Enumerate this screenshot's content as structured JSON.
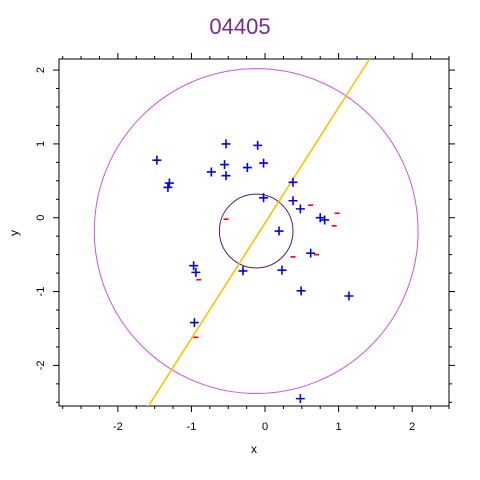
{
  "chart_data": {
    "type": "scatter",
    "title": "04405",
    "xlabel": "x",
    "ylabel": "y",
    "xlim": [
      -2.8,
      2.5
    ],
    "ylim": [
      -2.55,
      2.15
    ],
    "x_ticks": [
      "-2",
      "-1",
      "0",
      "1",
      "2"
    ],
    "x_tick_values": [
      -2,
      -1,
      0,
      1,
      2
    ],
    "y_ticks": [
      "-2",
      "-1",
      "0",
      "1",
      "2"
    ],
    "y_tick_values": [
      -2,
      -1,
      0,
      1,
      2
    ],
    "grid": false,
    "plus_points": [
      {
        "x": -1.47,
        "y": 0.78
      },
      {
        "x": -1.32,
        "y": 0.41
      },
      {
        "x": -1.3,
        "y": 0.47
      },
      {
        "x": -0.73,
        "y": 0.62
      },
      {
        "x": -0.53,
        "y": 1.0
      },
      {
        "x": -0.55,
        "y": 0.72
      },
      {
        "x": -0.53,
        "y": 0.57
      },
      {
        "x": -0.24,
        "y": 0.68
      },
      {
        "x": -0.1,
        "y": 0.98
      },
      {
        "x": -0.02,
        "y": 0.74
      },
      {
        "x": -0.02,
        "y": 0.27
      },
      {
        "x": 0.38,
        "y": 0.48
      },
      {
        "x": 0.38,
        "y": 0.23
      },
      {
        "x": 0.48,
        "y": 0.12
      },
      {
        "x": 0.75,
        "y": 0.0
      },
      {
        "x": 0.81,
        "y": -0.03
      },
      {
        "x": 0.19,
        "y": -0.18
      },
      {
        "x": 0.62,
        "y": -0.48
      },
      {
        "x": -0.97,
        "y": -0.65
      },
      {
        "x": -0.94,
        "y": -0.74
      },
      {
        "x": -0.3,
        "y": -0.72
      },
      {
        "x": 0.23,
        "y": -0.71
      },
      {
        "x": 0.49,
        "y": -0.99
      },
      {
        "x": 1.14,
        "y": -1.06
      },
      {
        "x": -0.96,
        "y": -1.42
      },
      {
        "x": 0.48,
        "y": -2.45
      }
    ],
    "minus_points": [
      {
        "x": -0.53,
        "y": -0.02
      },
      {
        "x": 0.62,
        "y": 0.17
      },
      {
        "x": 0.98,
        "y": 0.06
      },
      {
        "x": 0.94,
        "y": -0.11
      },
      {
        "x": 0.38,
        "y": -0.53
      },
      {
        "x": 0.7,
        "y": -0.5
      },
      {
        "x": -0.9,
        "y": -0.84
      },
      {
        "x": -0.94,
        "y": -1.62
      }
    ],
    "circles": [
      {
        "cx": -0.12,
        "cy": -0.18,
        "r": 2.2,
        "color": "#cc55e0"
      },
      {
        "cx": -0.12,
        "cy": -0.18,
        "r": 0.5,
        "color": "#5a1a6e"
      }
    ],
    "line": {
      "x1": -1.68,
      "y1": -2.7,
      "x2": 1.42,
      "y2": 2.15,
      "color": "#ffc000"
    },
    "colors": {
      "plus": "#0000ee",
      "minus": "#ee0000",
      "title": "#7a2a8e"
    }
  }
}
